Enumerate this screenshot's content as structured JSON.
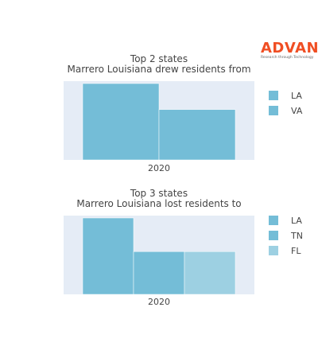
{
  "logo": {
    "word": "ADVAN",
    "tagline": "Research through Technology"
  },
  "colors": {
    "plot_bg": "#e5ecf6",
    "bar": "#74bdd7",
    "bar_light": "#9dd0e2",
    "logo": "#f04e23",
    "text": "#444444"
  },
  "chart_data": [
    {
      "type": "bar",
      "title": [
        "Top 2 states",
        "Marrero Louisiana drew residents from"
      ],
      "categories": [
        "2020"
      ],
      "series": [
        {
          "name": "LA",
          "values": [
            1.0
          ],
          "color": "#74bdd7"
        },
        {
          "name": "VA",
          "values": [
            0.66
          ],
          "color": "#74bdd7"
        }
      ],
      "ylim": [
        0,
        1.0
      ],
      "xlabel": "",
      "ylabel": "",
      "grid": false,
      "legend": "right"
    },
    {
      "type": "bar",
      "title": [
        "Top 3 states",
        "Marrero Louisiana lost residents to"
      ],
      "categories": [
        "2020"
      ],
      "series": [
        {
          "name": "LA",
          "values": [
            1.0
          ],
          "color": "#74bdd7"
        },
        {
          "name": "TN",
          "values": [
            0.56
          ],
          "color": "#74bdd7"
        },
        {
          "name": "FL",
          "values": [
            0.56
          ],
          "color": "#9dd0e2"
        }
      ],
      "ylim": [
        0,
        1.0
      ],
      "xlabel": "",
      "ylabel": "",
      "grid": false,
      "legend": "right"
    }
  ]
}
